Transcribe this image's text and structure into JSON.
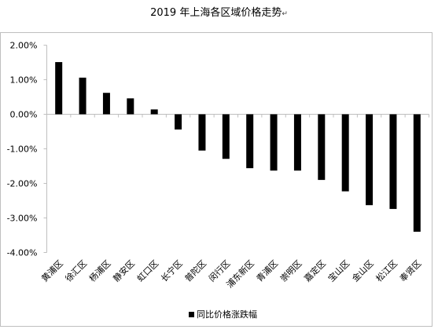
{
  "title": "2019 年上海各区域价格走势",
  "title_mark": "↵",
  "chart_data": {
    "type": "bar",
    "title": "2019 年上海各区域价格走势",
    "xlabel": "",
    "ylabel": "",
    "ylim": [
      -0.04,
      0.02
    ],
    "yticks": [
      "2.00%",
      "1.00%",
      "0.00%",
      "-1.00%",
      "-2.00%",
      "-3.00%",
      "-4.00%"
    ],
    "ytick_values": [
      0.02,
      0.01,
      0,
      -0.01,
      -0.02,
      -0.03,
      -0.04
    ],
    "grid": false,
    "legend": "bottom",
    "bar_color": "#000000",
    "categories": [
      "黄浦区",
      "徐汇区",
      "杨浦区",
      "静安区",
      "虹口区",
      "长宁区",
      "普陀区",
      "闵行区",
      "浦东新区",
      "青浦区",
      "崇明区",
      "嘉定区",
      "宝山区",
      "金山区",
      "松江区",
      "奉贤区"
    ],
    "series": [
      {
        "name": "同比价格涨跌幅",
        "values": [
          0.0151,
          0.0106,
          0.0062,
          0.0046,
          0.0014,
          -0.0044,
          -0.0105,
          -0.0129,
          -0.0156,
          -0.0163,
          -0.0163,
          -0.019,
          -0.0223,
          -0.0263,
          -0.0274,
          -0.034
        ]
      }
    ]
  }
}
